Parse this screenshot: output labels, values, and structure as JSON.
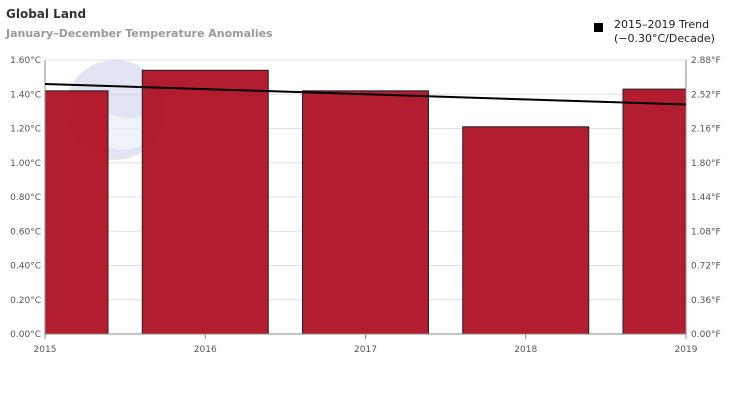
{
  "chart_data": {
    "type": "bar",
    "title": "Global Land",
    "subtitle": "January–December Temperature Anomalies",
    "categories": [
      "2015",
      "2016",
      "2017",
      "2018",
      "2019"
    ],
    "values": [
      1.42,
      1.54,
      1.42,
      1.21,
      1.43
    ],
    "bar_color": "#b01629",
    "ylim": [
      0,
      1.6
    ],
    "y_ticks_left": [
      "0.00°C",
      "0.20°C",
      "0.40°C",
      "0.60°C",
      "0.80°C",
      "1.00°C",
      "1.20°C",
      "1.40°C",
      "1.60°C"
    ],
    "y_ticks_right": [
      "0.00°F",
      "0.36°F",
      "0.72°F",
      "1.08°F",
      "1.44°F",
      "1.80°F",
      "2.16°F",
      "2.52°F",
      "2.88°F"
    ],
    "trend": {
      "name": "2015–2019 Trend",
      "rate_label": "(−0.30°C/Decade)",
      "start_value": 1.46,
      "end_value": 1.34,
      "color": "#000000"
    },
    "grid": true,
    "legend_position": "top-right"
  }
}
